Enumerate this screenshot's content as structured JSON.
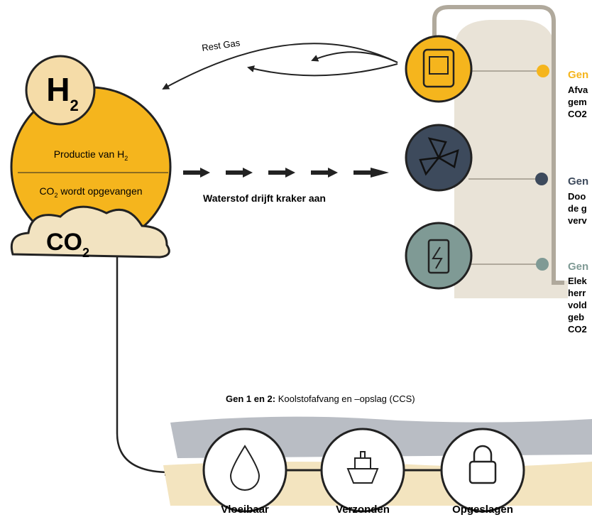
{
  "rest_gas": "Rest Gas",
  "h2_badge": {
    "main": "H",
    "sub": "2"
  },
  "production": {
    "main": "Productie van H",
    "sub": "2"
  },
  "captured": {
    "main": "CO",
    "sub": "2",
    "rest": " wordt opgevangen"
  },
  "cloud": {
    "main": "CO",
    "sub": "2"
  },
  "hydrogen_note": "Waterstof drijft kraker aan",
  "generations": [
    {
      "heading": "Gen",
      "lines": [
        "Afva",
        "gem",
        "CO2"
      ]
    },
    {
      "heading": "Gen",
      "lines": [
        "Doo",
        "de g",
        "verv"
      ]
    },
    {
      "heading": "Gen",
      "lines": [
        "Elek",
        "herr",
        "vold",
        "geb",
        "CO2"
      ]
    }
  ],
  "ccs": {
    "label": "Gen 1 en 2:",
    "text": " Koolstofafvang en –opslag (CCS)"
  },
  "steps": [
    "Vloeibaar",
    "Verzonden",
    "Opgeslagen"
  ]
}
